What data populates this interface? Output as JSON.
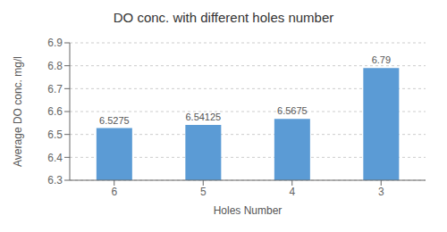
{
  "chart_data": {
    "type": "bar",
    "title": "DO conc. with different holes number",
    "xlabel": "Holes Number",
    "ylabel": "Average DO conc. mg/l",
    "categories": [
      "6",
      "5",
      "4",
      "3"
    ],
    "values": [
      6.5275,
      6.54125,
      6.5675,
      6.79
    ],
    "color": "#5B9BD5",
    "ylim": [
      6.3,
      6.9
    ],
    "yticks": [
      6.3,
      6.4,
      6.5,
      6.6,
      6.7,
      6.8,
      6.9
    ],
    "grid": true,
    "data_labels": true
  }
}
